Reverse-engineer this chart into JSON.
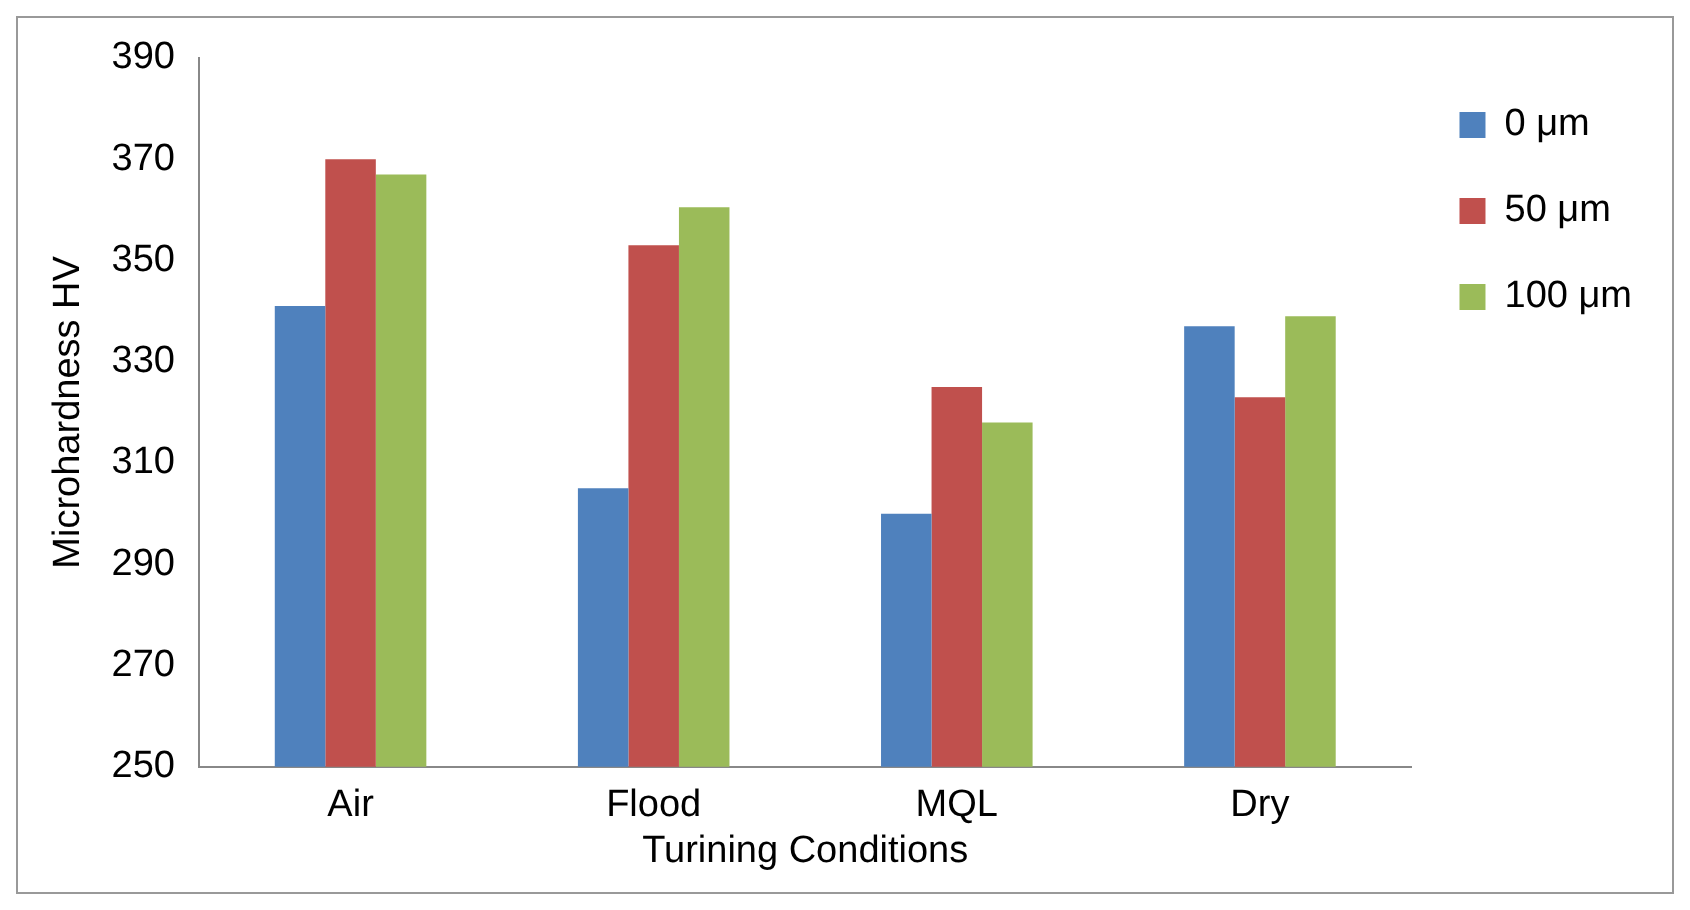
{
  "chart_data": {
    "type": "bar",
    "ylabel": "Microhardness HV",
    "xlabel": "Turining Conditions",
    "categories": [
      "Air",
      "Flood",
      "MQL",
      "Dry"
    ],
    "series": [
      {
        "name": "0 μm",
        "color": "#4f81bd",
        "values": [
          341,
          305,
          300,
          337
        ]
      },
      {
        "name": "50 μm",
        "color": "#c0504d",
        "values": [
          370,
          353,
          325,
          323
        ]
      },
      {
        "name": "100 μm",
        "color": "#9bbb59",
        "values": [
          367,
          360.5,
          318,
          339
        ]
      }
    ],
    "ylim": [
      250,
      390
    ],
    "yticks": [
      250,
      270,
      290,
      310,
      330,
      350,
      370,
      390
    ],
    "grid": false,
    "legend": "top right"
  }
}
